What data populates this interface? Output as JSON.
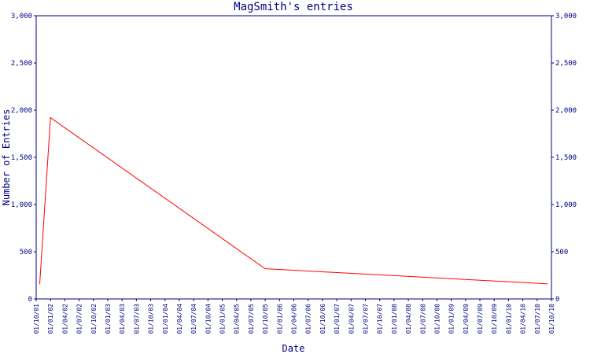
{
  "chart_data": {
    "type": "line",
    "title": "MagSmith's entries",
    "xlabel": "Date",
    "ylabel": "Number of Entries",
    "ylim": [
      0,
      3000
    ],
    "yticks": [
      0,
      500,
      1000,
      1500,
      2000,
      2500,
      3000
    ],
    "ytick_labels": [
      "0",
      "500",
      "1,000",
      "1,500",
      "2,000",
      "2,500",
      "3,000"
    ],
    "right_axis": true,
    "grid": false,
    "legend": "none",
    "colors": {
      "line": "#ff0000",
      "axis": "#000080",
      "text": "#000080",
      "background": "#ffffff"
    },
    "x_categories": [
      "01/10/01",
      "01/01/02",
      "01/04/02",
      "01/07/02",
      "01/10/02",
      "01/01/03",
      "01/04/03",
      "01/07/03",
      "01/10/03",
      "01/01/04",
      "01/04/04",
      "01/07/04",
      "01/10/04",
      "01/01/05",
      "01/04/05",
      "01/07/05",
      "01/10/05",
      "01/01/06",
      "01/04/06",
      "01/07/06",
      "01/10/06",
      "01/01/07",
      "01/04/07",
      "01/07/07",
      "01/10/07",
      "01/01/08",
      "01/04/08",
      "01/07/08",
      "01/10/08",
      "01/01/09",
      "01/04/09",
      "01/07/09",
      "01/10/09",
      "01/01/10",
      "01/04/10",
      "01/07/10",
      "01/10/10"
    ],
    "series": [
      {
        "points": [
          {
            "x": 0.25,
            "y": 160
          },
          {
            "x": 1.0,
            "y": 1920
          },
          {
            "x": 16.0,
            "y": 320
          },
          {
            "x": 35.7,
            "y": 160
          }
        ]
      }
    ]
  }
}
